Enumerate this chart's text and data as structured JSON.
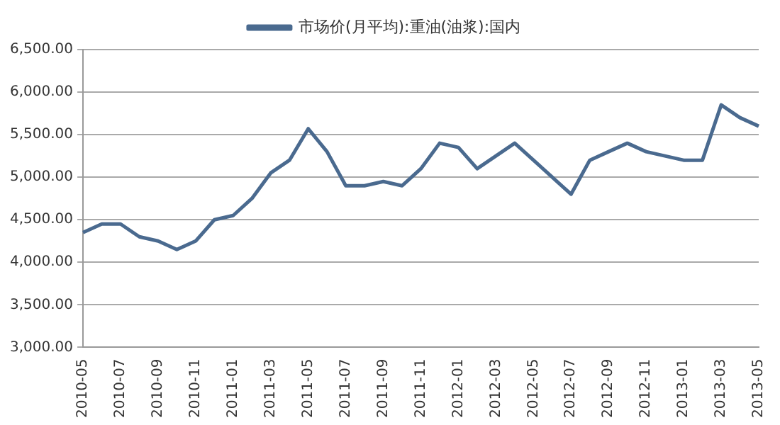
{
  "chart_data": {
    "type": "line",
    "categories": [
      "2010-05",
      null,
      "2010-07",
      null,
      "2010-09",
      null,
      "2010-11",
      null,
      "2011-01",
      null,
      "2011-03",
      null,
      "2011-05",
      null,
      "2011-07",
      null,
      "2011-09",
      null,
      "2011-11",
      null,
      "2012-01",
      null,
      "2012-03",
      null,
      "2012-05",
      null,
      "2012-07",
      null,
      "2012-09",
      null,
      "2012-11",
      null,
      "2013-01",
      null,
      "2013-03",
      null,
      "2013-05"
    ],
    "series": [
      {
        "name": "市场价(月平均):重油(油浆):国内",
        "color": "#4a6a8f",
        "values": [
          4350,
          4450,
          4450,
          4300,
          4250,
          4150,
          4250,
          4500,
          4550,
          4750,
          5050,
          5200,
          5570,
          5300,
          4900,
          4900,
          4950,
          4900,
          5100,
          5400,
          5350,
          5100,
          5250,
          5400,
          5200,
          5000,
          4800,
          5200,
          5300,
          5400,
          5300,
          5250,
          5200,
          5200,
          5850,
          5700,
          5600
        ]
      }
    ],
    "ylim": [
      3000,
      6500
    ],
    "yticks": [
      {
        "value": 3000,
        "label": "3,000.00"
      },
      {
        "value": 3500,
        "label": "3,500.00"
      },
      {
        "value": 4000,
        "label": "4,000.00"
      },
      {
        "value": 4500,
        "label": "4,500.00"
      },
      {
        "value": 5000,
        "label": "5,000.00"
      },
      {
        "value": 5500,
        "label": "5,500.00"
      },
      {
        "value": 6000,
        "label": "6,000.00"
      },
      {
        "value": 6500,
        "label": "6,500.00"
      }
    ],
    "grid": "y",
    "legend": "top",
    "marker": "none",
    "line_style": "solid"
  }
}
